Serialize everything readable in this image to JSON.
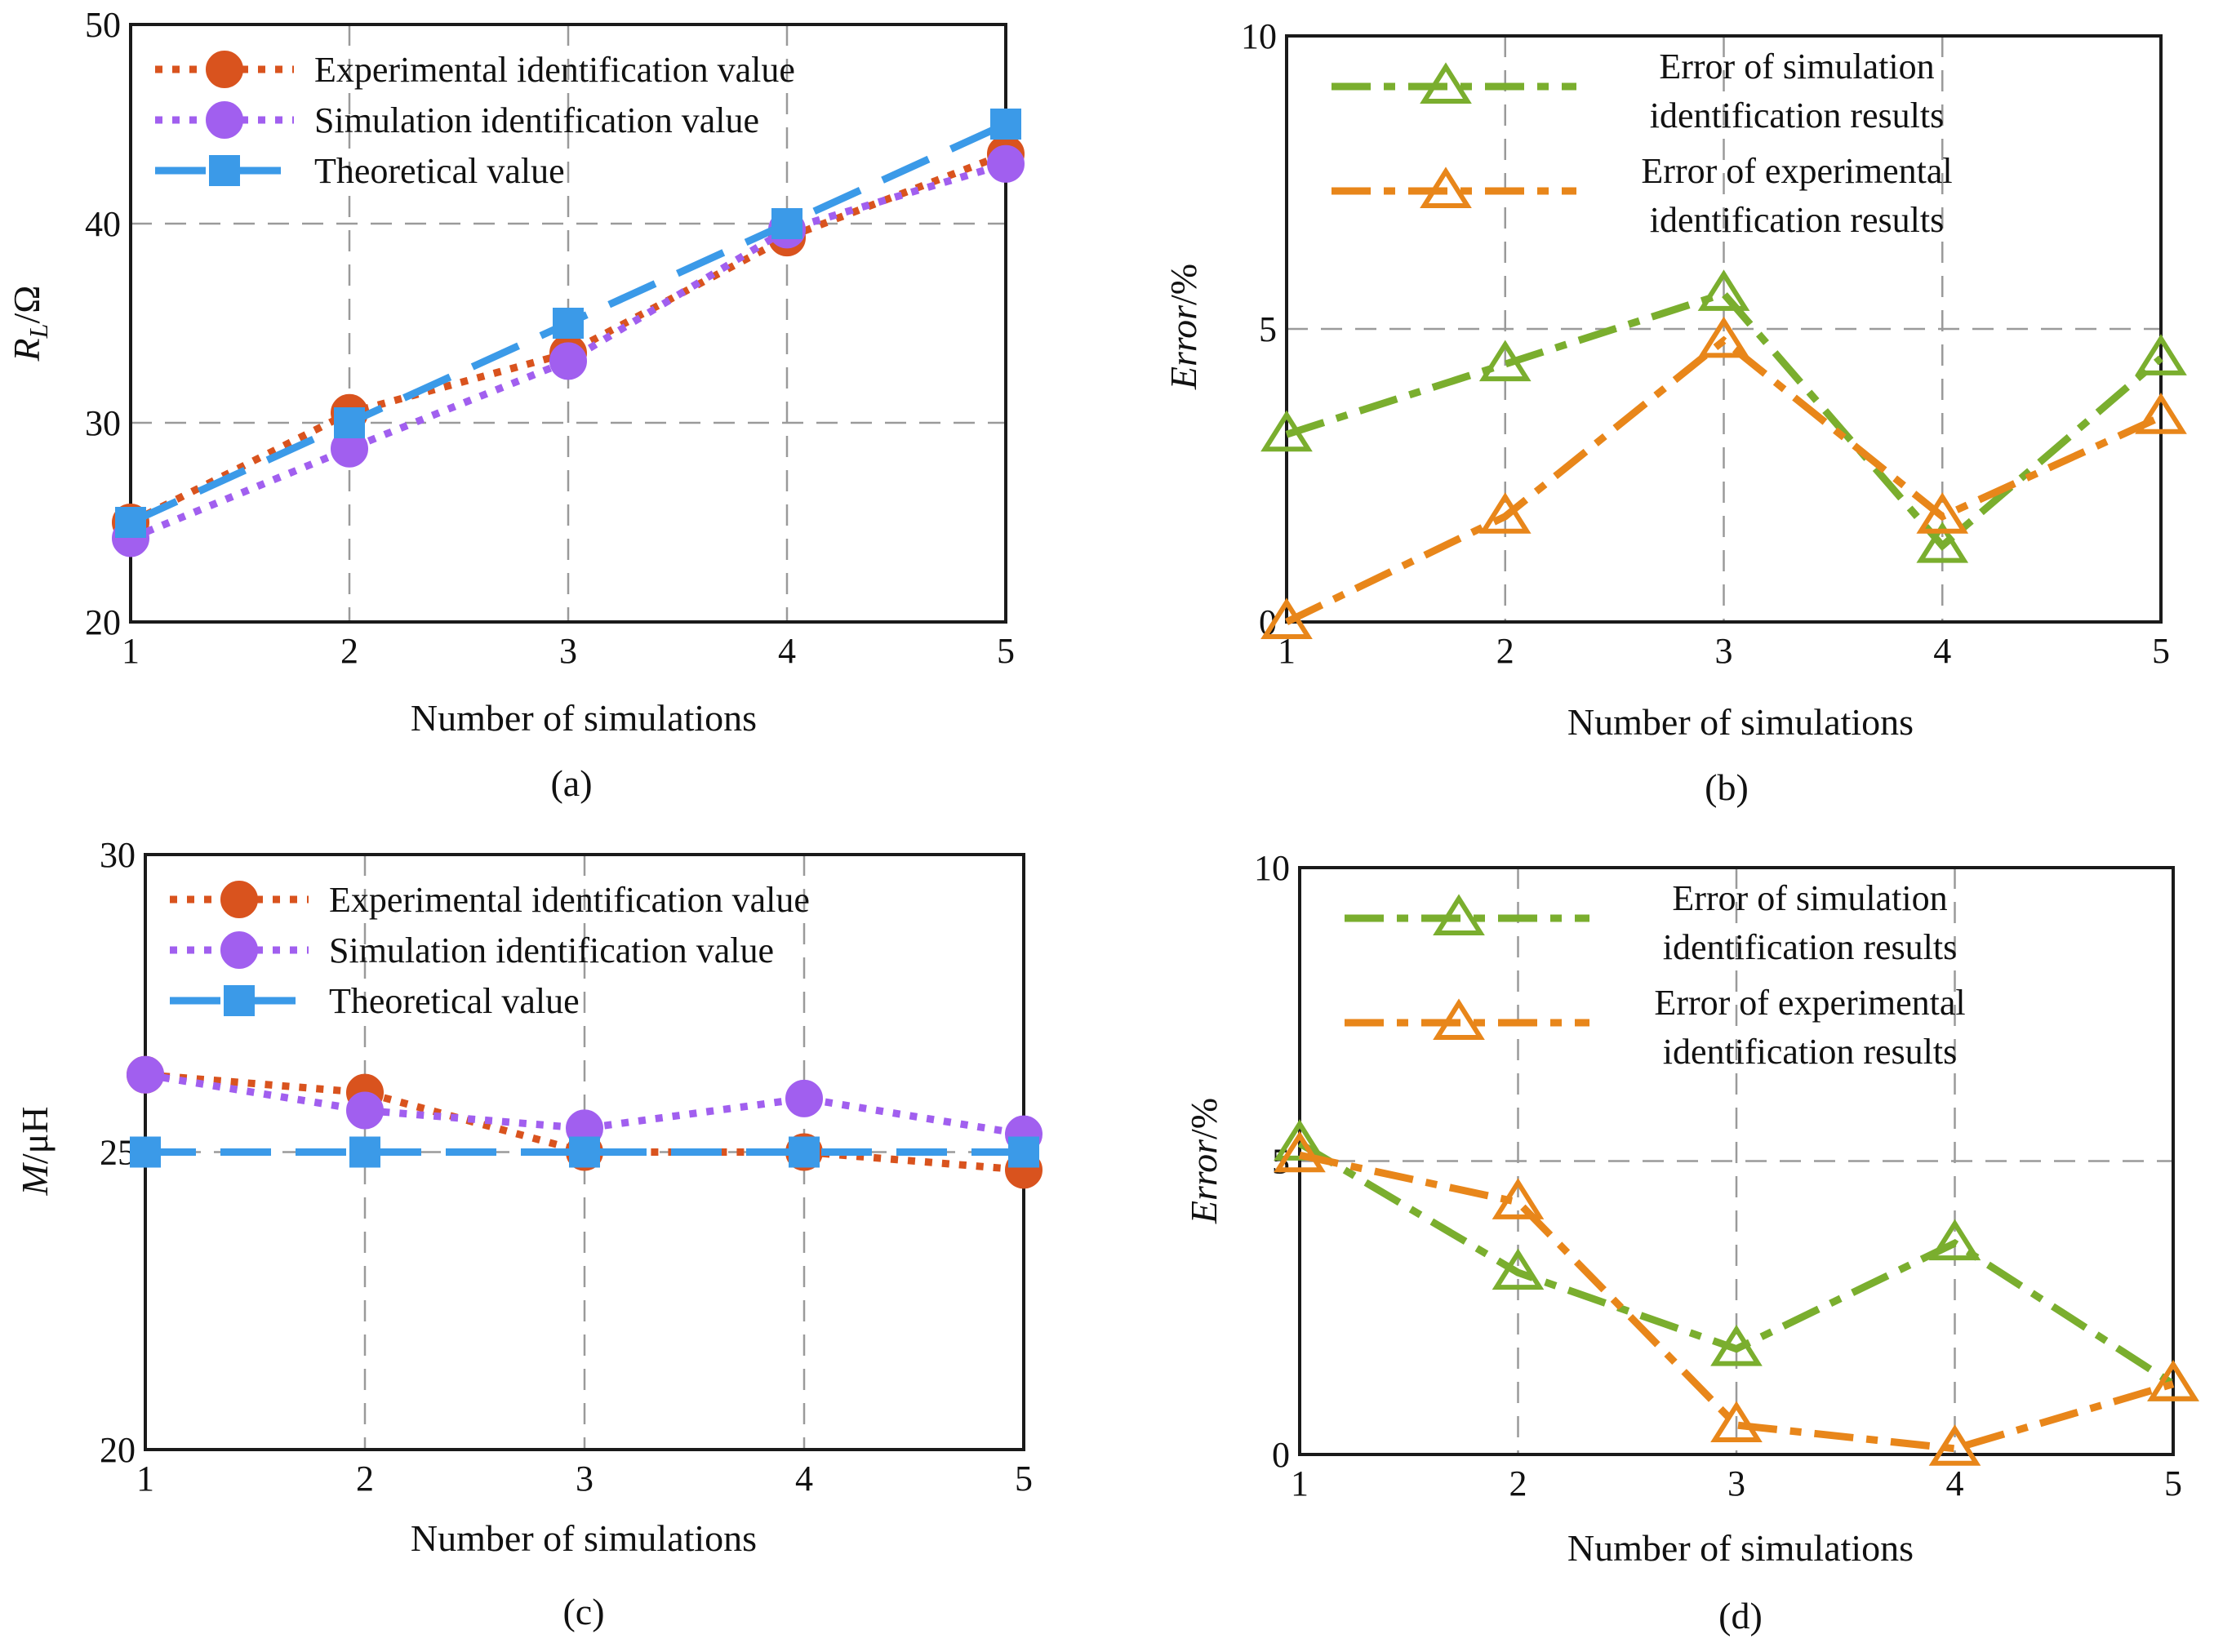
{
  "figure": {
    "captions": [
      "(a)",
      "(b)",
      "(c)",
      "(d)"
    ]
  },
  "colors": {
    "experimental": "#D9531E",
    "simulation": "#A15FEF",
    "theoretical": "#3B9AE8",
    "error_simulation": "#7AAE2E",
    "error_experimental": "#E8861A",
    "grid": "#9a9a9a",
    "axis": "#1a1a1a"
  },
  "chart_data": [
    {
      "id": "a",
      "type": "line",
      "caption": "(a)",
      "xlabel": "Number of simulations",
      "ylabel_main": "R",
      "ylabel_sub": "L",
      "ylabel_unit": "/Ω",
      "xlim": [
        1,
        5
      ],
      "ylim": [
        20,
        50
      ],
      "xticks": [
        "1",
        "2",
        "3",
        "4",
        "5"
      ],
      "yticks": [
        "20",
        "30",
        "40",
        "50"
      ],
      "grid": true,
      "legend_position": "top-left",
      "series": [
        {
          "name": "Experimental identification value",
          "color": "#D9531E",
          "style": "dotted",
          "marker": "circle",
          "x": [
            1,
            2,
            3,
            4,
            5
          ],
          "values": [
            25.0,
            30.5,
            33.5,
            39.3,
            43.5
          ]
        },
        {
          "name": "Simulation identification value",
          "color": "#A15FEF",
          "style": "dotted",
          "marker": "circle",
          "x": [
            1,
            2,
            3,
            4,
            5
          ],
          "values": [
            24.2,
            28.7,
            33.1,
            39.7,
            43.0
          ]
        },
        {
          "name": "Theoretical value",
          "color": "#3B9AE8",
          "style": "dashed",
          "marker": "square",
          "x": [
            1,
            2,
            3,
            4,
            5
          ],
          "values": [
            25,
            30,
            35,
            40,
            45
          ]
        }
      ]
    },
    {
      "id": "b",
      "type": "line",
      "caption": "(b)",
      "xlabel": "Number of simulations",
      "ylabel_main": "Error",
      "ylabel_unit": "/%",
      "xlim": [
        1,
        5
      ],
      "ylim": [
        0,
        10
      ],
      "xticks": [
        "1",
        "2",
        "3",
        "4",
        "5"
      ],
      "yticks": [
        "0",
        "5",
        "10"
      ],
      "grid": true,
      "legend_position": "top-right",
      "series": [
        {
          "name_lines": [
            "Error of simulation",
            "identification results"
          ],
          "color": "#7AAE2E",
          "style": "dashdot",
          "marker": "triangle",
          "x": [
            1,
            2,
            3,
            4,
            5
          ],
          "values": [
            3.2,
            4.4,
            5.6,
            1.3,
            4.5
          ]
        },
        {
          "name_lines": [
            "Error of experimental",
            "identification results"
          ],
          "color": "#E8861A",
          "style": "dashdot",
          "marker": "triangle",
          "x": [
            1,
            2,
            3,
            4,
            5
          ],
          "values": [
            0.0,
            1.8,
            4.8,
            1.8,
            3.5
          ]
        }
      ]
    },
    {
      "id": "c",
      "type": "line",
      "caption": "(c)",
      "xlabel": "Number of simulations",
      "ylabel_main": "M",
      "ylabel_unit": "/μH",
      "xlim": [
        1,
        5
      ],
      "ylim": [
        20,
        30
      ],
      "xticks": [
        "1",
        "2",
        "3",
        "4",
        "5"
      ],
      "yticks": [
        "20",
        "25",
        "30"
      ],
      "grid": true,
      "legend_position": "top-left",
      "series": [
        {
          "name": "Experimental identification value",
          "color": "#D9531E",
          "style": "dotted",
          "marker": "circle",
          "x": [
            1,
            2,
            3,
            4,
            5
          ],
          "values": [
            26.3,
            26.0,
            25.0,
            25.0,
            24.7
          ]
        },
        {
          "name": "Simulation identification value",
          "color": "#A15FEF",
          "style": "dotted",
          "marker": "circle",
          "x": [
            1,
            2,
            3,
            4,
            5
          ],
          "values": [
            26.3,
            25.7,
            25.4,
            25.9,
            25.3
          ]
        },
        {
          "name": "Theoretical value",
          "color": "#3B9AE8",
          "style": "dashed",
          "marker": "square",
          "x": [
            1,
            2,
            3,
            4,
            5
          ],
          "values": [
            25,
            25,
            25,
            25,
            25
          ]
        }
      ]
    },
    {
      "id": "d",
      "type": "line",
      "caption": "(d)",
      "xlabel": "Number of simulations",
      "ylabel_main": "Error",
      "ylabel_unit": "/%",
      "xlim": [
        1,
        5
      ],
      "ylim": [
        0,
        10
      ],
      "xticks": [
        "1",
        "2",
        "3",
        "4",
        "5"
      ],
      "yticks": [
        "0",
        "5",
        "10"
      ],
      "grid": true,
      "legend_position": "top-right",
      "series": [
        {
          "name_lines": [
            "Error of simulation",
            "identification results"
          ],
          "color": "#7AAE2E",
          "style": "dashdot",
          "marker": "triangle",
          "x": [
            1,
            2,
            3,
            4,
            5
          ],
          "values": [
            5.3,
            3.1,
            1.8,
            3.6,
            1.2
          ]
        },
        {
          "name_lines": [
            "Error of experimental",
            "identification results"
          ],
          "color": "#E8861A",
          "style": "dashdot",
          "marker": "triangle",
          "x": [
            1,
            2,
            3,
            4,
            5
          ],
          "values": [
            5.1,
            4.3,
            0.5,
            0.1,
            1.2
          ]
        }
      ]
    }
  ]
}
